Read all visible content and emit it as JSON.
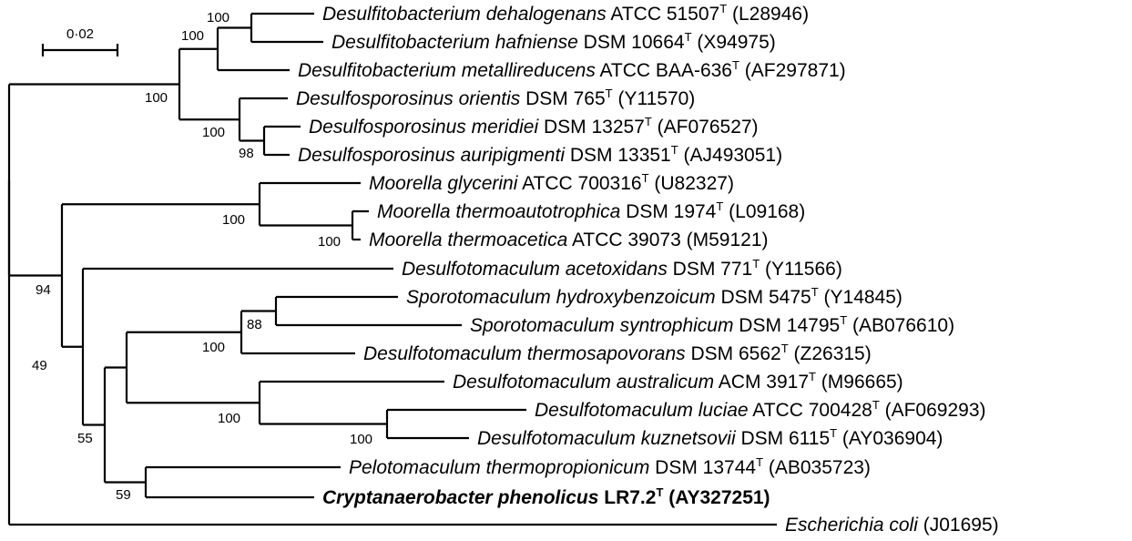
{
  "scale_bar": {
    "label": "0·02",
    "value": 0.02
  },
  "taxa": [
    {
      "id": "t1",
      "genus": "Desulfitobacterium",
      "species": "dehalogenans",
      "strain": "ATCC 51507",
      "type_strain": true,
      "accession": "(L28946)",
      "bold": false
    },
    {
      "id": "t2",
      "genus": "Desulfitobacterium",
      "species": "hafniense",
      "strain": "DSM 10664",
      "type_strain": true,
      "accession": "(X94975)",
      "bold": false
    },
    {
      "id": "t3",
      "genus": "Desulfitobacterium",
      "species": "metallireducens",
      "strain": "ATCC BAA-636",
      "type_strain": true,
      "accession": "(AF297871)",
      "bold": false
    },
    {
      "id": "t4",
      "genus": "Desulfosporosinus",
      "species": "orientis",
      "strain": "DSM 765",
      "type_strain": true,
      "accession": "(Y11570)",
      "bold": false
    },
    {
      "id": "t5",
      "genus": "Desulfosporosinus",
      "species": "meridiei",
      "strain": "DSM 13257",
      "type_strain": true,
      "accession": "(AF076527)",
      "bold": false
    },
    {
      "id": "t6",
      "genus": "Desulfosporosinus",
      "species": "auripigmenti",
      "strain": "DSM 13351",
      "type_strain": true,
      "accession": "(AJ493051)",
      "bold": false
    },
    {
      "id": "t7",
      "genus": "Moorella",
      "species": "glycerini",
      "strain": "ATCC 700316",
      "type_strain": true,
      "accession": "(U82327)",
      "bold": false
    },
    {
      "id": "t8",
      "genus": "Moorella",
      "species": "thermoautotrophica",
      "strain": "DSM 1974",
      "type_strain": true,
      "accession": "(L09168)",
      "bold": false
    },
    {
      "id": "t9",
      "genus": "Moorella",
      "species": "thermoacetica",
      "strain": "ATCC 39073",
      "type_strain": false,
      "accession": "(M59121)",
      "bold": false
    },
    {
      "id": "t10",
      "genus": "Desulfotomaculum",
      "species": "acetoxidans",
      "strain": "DSM 771",
      "type_strain": true,
      "accession": "(Y11566)",
      "bold": false
    },
    {
      "id": "t11",
      "genus": "Sporotomaculum",
      "species": "hydroxybenzoicum",
      "strain": "DSM 5475",
      "type_strain": true,
      "accession": "(Y14845)",
      "bold": false
    },
    {
      "id": "t12",
      "genus": "Sporotomaculum",
      "species": "syntrophicum",
      "strain": "DSM 14795",
      "type_strain": true,
      "accession": "(AB076610)",
      "bold": false
    },
    {
      "id": "t13",
      "genus": "Desulfotomaculum",
      "species": "thermosapovorans",
      "strain": "DSM 6562",
      "type_strain": true,
      "accession": "(Z26315)",
      "bold": false
    },
    {
      "id": "t14",
      "genus": "Desulfotomaculum",
      "species": "australicum",
      "strain": "ACM 3917",
      "type_strain": true,
      "accession": "(M96665)",
      "bold": false
    },
    {
      "id": "t15",
      "genus": "Desulfotomaculum",
      "species": "luciae",
      "strain": "ATCC 700428",
      "type_strain": true,
      "accession": "(AF069293)",
      "bold": false
    },
    {
      "id": "t16",
      "genus": "Desulfotomaculum",
      "species": "kuznetsovii",
      "strain": "DSM 6115",
      "type_strain": true,
      "accession": "(AY036904)",
      "bold": false
    },
    {
      "id": "t17",
      "genus": "Pelotomaculum",
      "species": "thermopropionicum",
      "strain": "DSM 13744",
      "type_strain": true,
      "accession": "(AB035723)",
      "bold": false
    },
    {
      "id": "t18",
      "genus": "Cryptanaerobacter",
      "species": "phenolicus",
      "strain": "LR7.2",
      "type_strain": true,
      "accession": "(AY327251)",
      "bold": true
    },
    {
      "id": "t19",
      "genus": "Escherichia",
      "species": "coli",
      "strain": "",
      "type_strain": false,
      "accession": "(J01695)",
      "bold": false
    }
  ],
  "bootstrap": [
    {
      "node": "n_t1_t2",
      "value": "100"
    },
    {
      "node": "n_t1_t3",
      "value": "100"
    },
    {
      "node": "n_t1_t6",
      "value": "100"
    },
    {
      "node": "n_t4_t6",
      "value": "100"
    },
    {
      "node": "n_t5_t6",
      "value": "98"
    },
    {
      "node": "n_t7_t9",
      "value": "100"
    },
    {
      "node": "n_t8_t9",
      "value": "100"
    },
    {
      "node": "n_t1_t18",
      "value": "94"
    },
    {
      "node": "n_t7_t18",
      "value": "49"
    },
    {
      "node": "n_t10_t18",
      "value": "55"
    },
    {
      "node": "n_t11_t13",
      "value": "100"
    },
    {
      "node": "n_t11_t12",
      "value": "88"
    },
    {
      "node": "n_t14_t16",
      "value": "100"
    },
    {
      "node": "n_t15_t16",
      "value": "100"
    },
    {
      "node": "n_t17_t18",
      "value": "59"
    }
  ]
}
